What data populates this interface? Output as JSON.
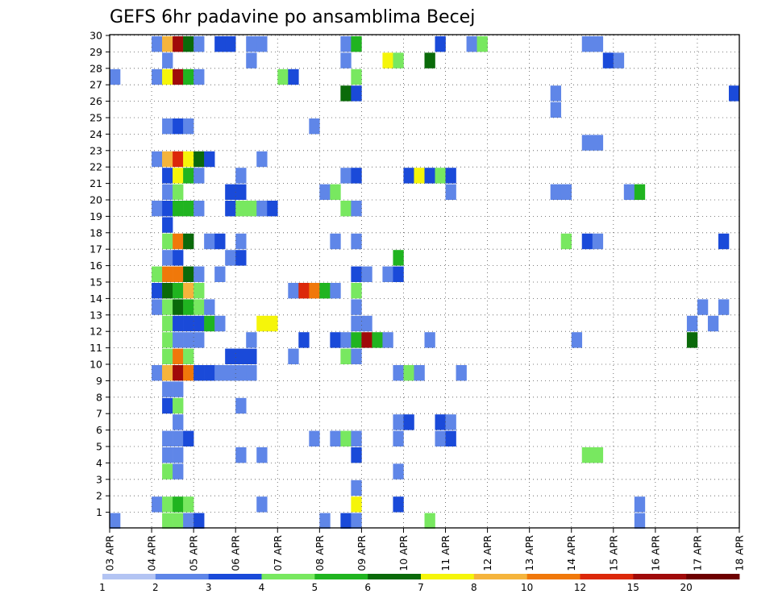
{
  "chart_data": {
    "type": "heatmap",
    "title": "GEFS 6hr padavine po ansamblima Becej",
    "xlabel": "",
    "ylabel": "",
    "x_tick_labels": [
      "03 APR",
      "04 APR",
      "05 APR",
      "06 APR",
      "07 APR",
      "08 APR",
      "09 APR",
      "10 APR",
      "11 APR",
      "12 APR",
      "13 APR",
      "14 APR",
      "15 APR",
      "16 APR",
      "17 APR",
      "18 APR"
    ],
    "x_time_steps": 60,
    "x_steps_per_day": 4,
    "members": 30,
    "grid": true,
    "colorbar": {
      "position": "bottom",
      "boundaries": [
        1,
        2,
        3,
        4,
        5,
        6,
        7,
        8,
        10,
        12,
        15,
        20
      ],
      "colors": [
        "#b3c4f3",
        "#5f86e8",
        "#1a4ad9",
        "#78e860",
        "#20b420",
        "#0a6a0a",
        "#f5f50a",
        "#f5b43c",
        "#f0780a",
        "#dc280a",
        "#a00a0a",
        "#6e0000"
      ]
    },
    "cells": [
      [
        30,
        1,
        4,
        1
      ],
      [
        30,
        2,
        5,
        7
      ],
      [
        30,
        2,
        6,
        10
      ],
      [
        30,
        2,
        7,
        5
      ],
      [
        30,
        2,
        8,
        1
      ],
      [
        30,
        4,
        10,
        2
      ],
      [
        30,
        4,
        11,
        2
      ],
      [
        30,
        5,
        13,
        1
      ],
      [
        30,
        5,
        14,
        1
      ],
      [
        30,
        8,
        22,
        1
      ],
      [
        30,
        8,
        23,
        4
      ],
      [
        30,
        10,
        31,
        2
      ],
      [
        30,
        11,
        34,
        1
      ],
      [
        30,
        11,
        35,
        3
      ],
      [
        30,
        14,
        45,
        1
      ],
      [
        30,
        14,
        46,
        1
      ],
      [
        29,
        1,
        5,
        1
      ],
      [
        29,
        5,
        13,
        1
      ],
      [
        29,
        8,
        22,
        1
      ],
      [
        29,
        9,
        26,
        6
      ],
      [
        29,
        9,
        27,
        3
      ],
      [
        29,
        10,
        30,
        5
      ],
      [
        29,
        15,
        47,
        2
      ],
      [
        29,
        15,
        48,
        1
      ],
      [
        28,
        1,
        0,
        1
      ],
      [
        28,
        1,
        4,
        1
      ],
      [
        28,
        1,
        5,
        6
      ],
      [
        28,
        2,
        6,
        10
      ],
      [
        28,
        2,
        7,
        4
      ],
      [
        28,
        2,
        8,
        1
      ],
      [
        28,
        6,
        16,
        3
      ],
      [
        28,
        6,
        17,
        2
      ],
      [
        28,
        8,
        23,
        3
      ],
      [
        27,
        8,
        22,
        5
      ],
      [
        27,
        8,
        23,
        2
      ],
      [
        27,
        12,
        42,
        1
      ],
      [
        27,
        15,
        59,
        2
      ],
      [
        26,
        12,
        42,
        1
      ],
      [
        25,
        1,
        5,
        1
      ],
      [
        25,
        2,
        6,
        2
      ],
      [
        25,
        2,
        7,
        1
      ],
      [
        25,
        7,
        19,
        1
      ],
      [
        24,
        13,
        45,
        1
      ],
      [
        24,
        13,
        46,
        1
      ],
      [
        23,
        1,
        4,
        1
      ],
      [
        23,
        1,
        5,
        7
      ],
      [
        23,
        2,
        6,
        9
      ],
      [
        23,
        2,
        7,
        6
      ],
      [
        23,
        2,
        8,
        5
      ],
      [
        23,
        3,
        9,
        2
      ],
      [
        23,
        6,
        14,
        1
      ],
      [
        22,
        1,
        5,
        2
      ],
      [
        22,
        2,
        6,
        6
      ],
      [
        22,
        2,
        7,
        4
      ],
      [
        22,
        2,
        8,
        1
      ],
      [
        22,
        4,
        12,
        1
      ],
      [
        22,
        8,
        22,
        1
      ],
      [
        22,
        8,
        23,
        2
      ],
      [
        22,
        10,
        28,
        2
      ],
      [
        22,
        10,
        29,
        6
      ],
      [
        22,
        10,
        30,
        2
      ],
      [
        22,
        11,
        31,
        3
      ],
      [
        22,
        11,
        32,
        2
      ],
      [
        21,
        1,
        5,
        1
      ],
      [
        21,
        2,
        6,
        3
      ],
      [
        21,
        4,
        11,
        2
      ],
      [
        21,
        4,
        12,
        2
      ],
      [
        21,
        7,
        20,
        1
      ],
      [
        21,
        7,
        21,
        3
      ],
      [
        21,
        11,
        32,
        1
      ],
      [
        21,
        12,
        42,
        1
      ],
      [
        21,
        12,
        43,
        1
      ],
      [
        21,
        16,
        49,
        1
      ],
      [
        21,
        16,
        50,
        4
      ],
      [
        20,
        1,
        4,
        1
      ],
      [
        20,
        1,
        5,
        2
      ],
      [
        20,
        2,
        6,
        4
      ],
      [
        20,
        2,
        7,
        4
      ],
      [
        20,
        2,
        8,
        1
      ],
      [
        20,
        4,
        11,
        2
      ],
      [
        20,
        4,
        12,
        3
      ],
      [
        20,
        4,
        13,
        3
      ],
      [
        20,
        5,
        14,
        1
      ],
      [
        20,
        5,
        15,
        2
      ],
      [
        20,
        8,
        22,
        3
      ],
      [
        20,
        8,
        23,
        1
      ],
      [
        19,
        1,
        5,
        2
      ],
      [
        18,
        1,
        5,
        3
      ],
      [
        18,
        2,
        6,
        8
      ],
      [
        18,
        2,
        7,
        5
      ],
      [
        18,
        3,
        9,
        1
      ],
      [
        18,
        3,
        10,
        2
      ],
      [
        18,
        4,
        12,
        1
      ],
      [
        18,
        7,
        21,
        1
      ],
      [
        18,
        8,
        23,
        1
      ],
      [
        18,
        13,
        43,
        3
      ],
      [
        18,
        13,
        45,
        2
      ],
      [
        18,
        13,
        46,
        1
      ],
      [
        18,
        15,
        58,
        2
      ],
      [
        17,
        1,
        5,
        1
      ],
      [
        17,
        2,
        6,
        2
      ],
      [
        17,
        4,
        11,
        1
      ],
      [
        17,
        4,
        12,
        2
      ],
      [
        17,
        10,
        27,
        4
      ],
      [
        16,
        1,
        4,
        3
      ],
      [
        16,
        1,
        5,
        8
      ],
      [
        16,
        2,
        6,
        8
      ],
      [
        16,
        2,
        7,
        5
      ],
      [
        16,
        2,
        8,
        1
      ],
      [
        16,
        3,
        10,
        1
      ],
      [
        16,
        8,
        23,
        2
      ],
      [
        16,
        8,
        24,
        1
      ],
      [
        16,
        10,
        26,
        1
      ],
      [
        16,
        10,
        27,
        2
      ],
      [
        15,
        1,
        4,
        2
      ],
      [
        15,
        1,
        5,
        5
      ],
      [
        15,
        2,
        6,
        4
      ],
      [
        15,
        2,
        7,
        7
      ],
      [
        15,
        2,
        8,
        3
      ],
      [
        15,
        6,
        17,
        1
      ],
      [
        15,
        6,
        18,
        9
      ],
      [
        15,
        6,
        19,
        8
      ],
      [
        15,
        7,
        20,
        4
      ],
      [
        15,
        7,
        21,
        1
      ],
      [
        15,
        8,
        23,
        3
      ],
      [
        14,
        1,
        4,
        1
      ],
      [
        14,
        1,
        5,
        3
      ],
      [
        14,
        2,
        6,
        5
      ],
      [
        14,
        2,
        7,
        4
      ],
      [
        14,
        2,
        8,
        3
      ],
      [
        14,
        3,
        9,
        1
      ],
      [
        14,
        8,
        23,
        1
      ],
      [
        14,
        15,
        56,
        1
      ],
      [
        14,
        15,
        58,
        1
      ],
      [
        13,
        1,
        5,
        3
      ],
      [
        13,
        2,
        6,
        2
      ],
      [
        13,
        2,
        7,
        2
      ],
      [
        13,
        2,
        8,
        2
      ],
      [
        13,
        3,
        9,
        4
      ],
      [
        13,
        3,
        10,
        1
      ],
      [
        13,
        5,
        14,
        6
      ],
      [
        13,
        5,
        15,
        6
      ],
      [
        13,
        8,
        23,
        1
      ],
      [
        13,
        8,
        24,
        1
      ],
      [
        13,
        15,
        55,
        1
      ],
      [
        13,
        15,
        57,
        1
      ],
      [
        12,
        1,
        5,
        3
      ],
      [
        12,
        2,
        6,
        1
      ],
      [
        12,
        2,
        7,
        1
      ],
      [
        12,
        2,
        8,
        1
      ],
      [
        12,
        4,
        13,
        1
      ],
      [
        12,
        6,
        18,
        2
      ],
      [
        12,
        8,
        21,
        2
      ],
      [
        12,
        8,
        22,
        1
      ],
      [
        12,
        9,
        23,
        4
      ],
      [
        12,
        9,
        24,
        10
      ],
      [
        12,
        9,
        25,
        4
      ],
      [
        12,
        9,
        26,
        1
      ],
      [
        12,
        11,
        30,
        1
      ],
      [
        12,
        13,
        44,
        1
      ],
      [
        12,
        15,
        55,
        5
      ],
      [
        11,
        1,
        5,
        3
      ],
      [
        11,
        2,
        6,
        8
      ],
      [
        11,
        2,
        7,
        3
      ],
      [
        11,
        4,
        11,
        2
      ],
      [
        11,
        4,
        12,
        2
      ],
      [
        11,
        4,
        13,
        2
      ],
      [
        11,
        7,
        17,
        1
      ],
      [
        11,
        8,
        22,
        3
      ],
      [
        11,
        8,
        23,
        1
      ],
      [
        10,
        1,
        4,
        1
      ],
      [
        10,
        1,
        5,
        7
      ],
      [
        10,
        2,
        6,
        10
      ],
      [
        10,
        2,
        7,
        8
      ],
      [
        10,
        2,
        8,
        2
      ],
      [
        10,
        3,
        9,
        2
      ],
      [
        10,
        4,
        10,
        1
      ],
      [
        10,
        4,
        11,
        1
      ],
      [
        10,
        4,
        12,
        1
      ],
      [
        10,
        4,
        13,
        1
      ],
      [
        10,
        10,
        27,
        1
      ],
      [
        10,
        10,
        28,
        3
      ],
      [
        10,
        10,
        29,
        1
      ],
      [
        10,
        12,
        33,
        1
      ],
      [
        9,
        1,
        5,
        1
      ],
      [
        9,
        2,
        6,
        1
      ],
      [
        8,
        1,
        5,
        2
      ],
      [
        8,
        2,
        6,
        3
      ],
      [
        8,
        4,
        12,
        1
      ],
      [
        7,
        2,
        6,
        1
      ],
      [
        7,
        10,
        27,
        1
      ],
      [
        7,
        10,
        28,
        2
      ],
      [
        7,
        11,
        31,
        2
      ],
      [
        7,
        11,
        32,
        1
      ],
      [
        6,
        1,
        5,
        1
      ],
      [
        6,
        2,
        6,
        1
      ],
      [
        6,
        2,
        7,
        2
      ],
      [
        6,
        7,
        19,
        1
      ],
      [
        6,
        8,
        21,
        1
      ],
      [
        6,
        8,
        22,
        3
      ],
      [
        6,
        8,
        23,
        1
      ],
      [
        6,
        10,
        27,
        1
      ],
      [
        6,
        11,
        31,
        1
      ],
      [
        6,
        11,
        32,
        2
      ],
      [
        5,
        1,
        5,
        1
      ],
      [
        5,
        2,
        6,
        1
      ],
      [
        5,
        4,
        12,
        1
      ],
      [
        5,
        5,
        14,
        1
      ],
      [
        5,
        8,
        23,
        2
      ],
      [
        5,
        14,
        45,
        3
      ],
      [
        5,
        14,
        46,
        3
      ],
      [
        4,
        1,
        5,
        3
      ],
      [
        4,
        2,
        6,
        1
      ],
      [
        4,
        10,
        27,
        1
      ],
      [
        3,
        8,
        23,
        1
      ],
      [
        2,
        1,
        4,
        1
      ],
      [
        2,
        1,
        5,
        3
      ],
      [
        2,
        2,
        6,
        4
      ],
      [
        2,
        2,
        7,
        3
      ],
      [
        2,
        6,
        14,
        1
      ],
      [
        2,
        8,
        23,
        6
      ],
      [
        2,
        10,
        27,
        2
      ],
      [
        2,
        15,
        50,
        1
      ],
      [
        1,
        0,
        0,
        1
      ],
      [
        1,
        1,
        5,
        3
      ],
      [
        1,
        2,
        6,
        3
      ],
      [
        1,
        2,
        7,
        1
      ],
      [
        1,
        2,
        8,
        2
      ],
      [
        1,
        7,
        20,
        1
      ],
      [
        1,
        8,
        22,
        2
      ],
      [
        1,
        8,
        23,
        1
      ],
      [
        1,
        10,
        30,
        3
      ],
      [
        1,
        15,
        50,
        1
      ]
    ],
    "cell_format": "[member, tick_unused, x_step, level_index]"
  }
}
